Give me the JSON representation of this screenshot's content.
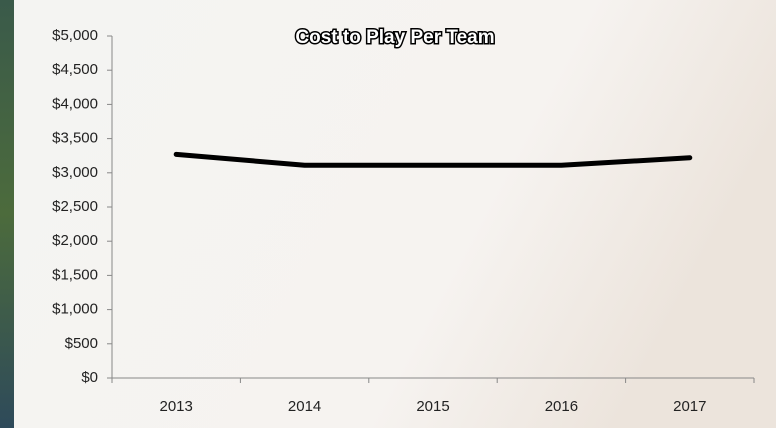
{
  "chart_data": {
    "type": "line",
    "title": "Cost to Play Per Team",
    "categories": [
      "2013",
      "2014",
      "2015",
      "2016",
      "2017"
    ],
    "series": [
      {
        "color": "#000000",
        "values": [
          3270,
          3110,
          3110,
          3110,
          3220
        ]
      }
    ],
    "ylim": [
      0,
      5000
    ],
    "yticks": [
      {
        "value": 0,
        "label": "$0"
      },
      {
        "value": 500,
        "label": "$500"
      },
      {
        "value": 1000,
        "label": "$1,000"
      },
      {
        "value": 1500,
        "label": "$1,500"
      },
      {
        "value": 2000,
        "label": "$2,000"
      },
      {
        "value": 2500,
        "label": "$2,500"
      },
      {
        "value": 3000,
        "label": "$3,000"
      },
      {
        "value": 3500,
        "label": "$3,500"
      },
      {
        "value": 4000,
        "label": "$4,000"
      },
      {
        "value": 4500,
        "label": "$4,500"
      },
      {
        "value": 5000,
        "label": "$5,000"
      }
    ],
    "grid": false
  }
}
